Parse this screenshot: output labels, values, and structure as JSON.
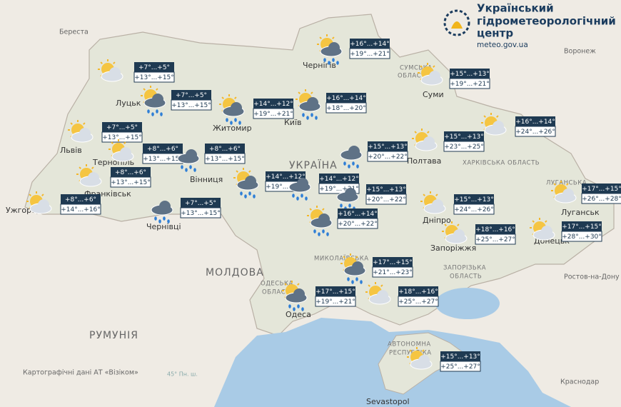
{
  "header": {
    "title_lines": [
      "Український",
      "гідрометеорологічний",
      "центр"
    ],
    "url": "meteo.gov.ua"
  },
  "attribution": "Картографічні дані АТ «Візіком»",
  "forecasts": [
    {
      "night": "+7°...+5°",
      "day": "+13°...+15°"
    },
    {
      "night": "+7°...+5°",
      "day": "+13°...+15°"
    },
    {
      "night": "+14°...+12°",
      "day": "+19°...+21°"
    },
    {
      "night": "+16°...+14°",
      "day": "+18°...+20°"
    },
    {
      "night": "+16°...+14°",
      "day": "+19°...+21°"
    },
    {
      "night": "+15°...+13°",
      "day": "+19°...+21°"
    },
    {
      "night": "+16°...+14°",
      "day": "+24°...+26°"
    },
    {
      "night": "+7°...+5°",
      "day": "+13°...+15°"
    },
    {
      "night": "+8°...+6°",
      "day": "+13°...+15°"
    },
    {
      "night": "+8°...+6°",
      "day": "+13°...+15°"
    },
    {
      "night": "+8°...+6°",
      "day": "+13°...+15°"
    },
    {
      "night": "+8°...+6°",
      "day": "+14°...+16°"
    },
    {
      "night": "+7°...+5°",
      "day": "+13°...+15°"
    },
    {
      "night": "+14°...+12°",
      "day": "+19°...+21°"
    },
    {
      "night": "+14°...+12°",
      "day": "+19°...+21°"
    },
    {
      "night": "+15°...+13°",
      "day": "+20°...+22°"
    },
    {
      "night": "+15°...+13°",
      "day": "+20°...+22°"
    },
    {
      "night": "+15°...+13°",
      "day": "+23°...+25°"
    },
    {
      "night": "+15°...+13°",
      "day": "+24°...+26°"
    },
    {
      "night": "+16°...+14°",
      "day": "+20°...+22°"
    },
    {
      "night": "+18°...+16°",
      "day": "+25°...+27°"
    },
    {
      "night": "+17°...+15°",
      "day": "+28°...+30°"
    },
    {
      "night": "+17°...+15°",
      "day": "+26°...+28°"
    },
    {
      "night": "+17°...+15°",
      "day": "+21°...+23°"
    },
    {
      "night": "+17°...+15°",
      "day": "+19°...+21°"
    },
    {
      "night": "+18°...+16°",
      "day": "+25°...+27°"
    },
    {
      "night": "+15°...+13°",
      "day": "+25°...+27°"
    }
  ],
  "labels": [
    "Береста",
    "Воронеж",
    "Ростов-на-Дону",
    "Краснодар",
    "Луцьк",
    "Житомир",
    "Київ",
    "Чернігів",
    "Суми",
    "Львів",
    "Тернопіль",
    "Франківськ",
    "Ужгород",
    "Чернівці",
    "Вінниця",
    "Полтава",
    "Дніпро",
    "Запоріжжя",
    "Донецьк",
    "Луганськ",
    "Одеса",
    "Sevastopol",
    "УКРАЇНА",
    "МОЛДОВА",
    "РУМУНІЯ",
    "СУМСЬКА",
    "ОБЛАСТЬ",
    "ХАРКІВСЬКА ОБЛАСТЬ",
    "ЛУГАНСЬКА",
    "ЗАПОРІЗЬКА",
    "ОБЛАСТЬ",
    "МИКОЛАЇВСЬКА",
    "ОДЕСЬКА",
    "ОБЛАСТЬ",
    "АВТОНОМНА",
    "РЕСПУБЛІКА",
    "45° Пн. ш."
  ]
}
